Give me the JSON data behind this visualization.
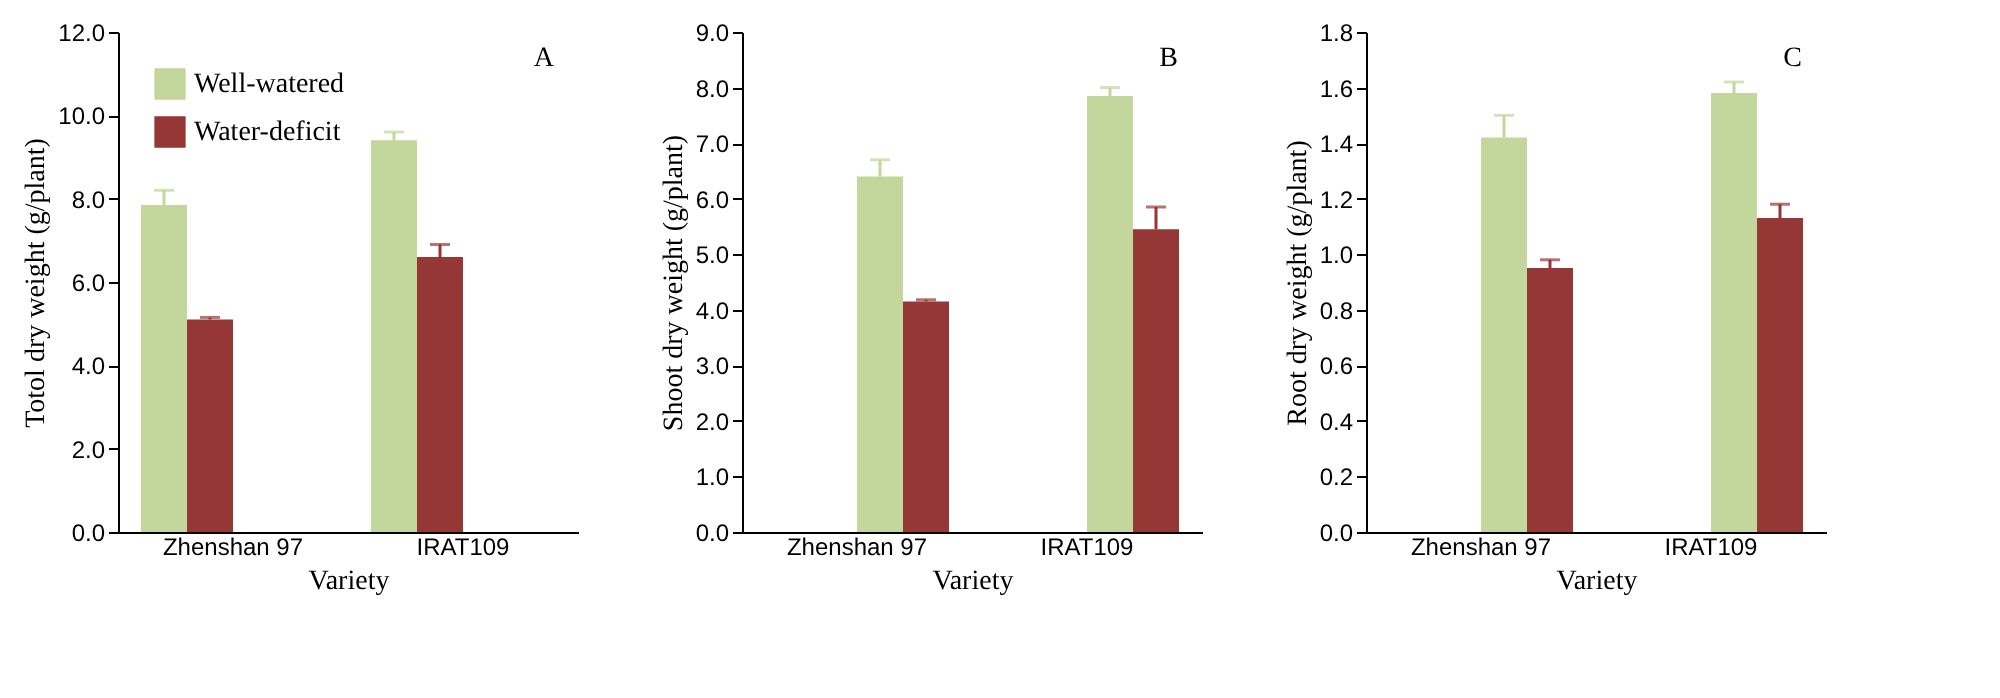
{
  "chart_data": [
    {
      "type": "bar",
      "ylabel": "Totol dry weight (g/plant)",
      "xlabel": "Variety",
      "categories": [
        "Zhenshan 97",
        "IRAT109"
      ],
      "annotations": [
        "A"
      ],
      "legend": "top left",
      "grid": false,
      "ylim": [
        0,
        12
      ],
      "yticks": [
        {
          "value": 0,
          "label": "0.0"
        },
        {
          "value": 2,
          "label": "2.0"
        },
        {
          "value": 4,
          "label": "4.0"
        },
        {
          "value": 6,
          "label": "6.0"
        },
        {
          "value": 8,
          "label": "8.0"
        },
        {
          "value": 10,
          "label": "10.0"
        },
        {
          "value": 12,
          "label": "12.0"
        }
      ],
      "series": [
        {
          "name": "Well-watered",
          "color": "#c3d69b",
          "values": [
            7.85,
            9.4
          ],
          "errors": [
            [
              7.85,
              8.2
            ],
            [
              9.4,
              9.6
            ]
          ]
        },
        {
          "name": "Water-deficit",
          "color": "#953735",
          "values": [
            5.1,
            6.6
          ],
          "errors": [
            [
              5.1,
              5.15
            ],
            [
              6.6,
              6.9
            ]
          ]
        }
      ]
    },
    {
      "type": "bar",
      "ylabel": "Shoot dry weight (g/plant)",
      "xlabel": "Variety",
      "categories": [
        "Zhenshan 97",
        "IRAT109"
      ],
      "annotations": [
        "B"
      ],
      "grid": false,
      "ylim": [
        0,
        9
      ],
      "yticks": [
        {
          "value": 0,
          "label": "0.0"
        },
        {
          "value": 1,
          "label": "1.0"
        },
        {
          "value": 2,
          "label": "2.0"
        },
        {
          "value": 3,
          "label": "3.0"
        },
        {
          "value": 4,
          "label": "4.0"
        },
        {
          "value": 5,
          "label": "5.0"
        },
        {
          "value": 6,
          "label": "6.0"
        },
        {
          "value": 7,
          "label": "7.0"
        },
        {
          "value": 8,
          "label": "8.0"
        },
        {
          "value": 9,
          "label": "9.0"
        }
      ],
      "series": [
        {
          "color": "#c3d69b",
          "values": [
            6.4,
            7.85
          ],
          "errors": [
            [
              6.4,
              6.7
            ],
            [
              7.85,
              8.0
            ]
          ]
        },
        {
          "color": "#953735",
          "values": [
            4.15,
            5.45
          ],
          "errors": [
            [
              4.15,
              4.18
            ],
            [
              5.45,
              5.85
            ]
          ]
        }
      ]
    },
    {
      "type": "bar",
      "ylabel": "Root dry weight (g/plant)",
      "xlabel": "Variety",
      "categories": [
        "Zhenshan 97",
        "IRAT109"
      ],
      "annotations": [
        "C"
      ],
      "grid": false,
      "ylim": [
        0,
        1.8
      ],
      "yticks": [
        {
          "value": 0,
          "label": "0.0"
        },
        {
          "value": 0.2,
          "label": "0.2"
        },
        {
          "value": 0.4,
          "label": "0.4"
        },
        {
          "value": 0.6,
          "label": "0.6"
        },
        {
          "value": 0.8,
          "label": "0.8"
        },
        {
          "value": 1.0,
          "label": "1.0"
        },
        {
          "value": 1.2,
          "label": "1.2"
        },
        {
          "value": 1.4,
          "label": "1.4"
        },
        {
          "value": 1.6,
          "label": "1.6"
        },
        {
          "value": 1.8,
          "label": "1.8"
        }
      ],
      "series": [
        {
          "color": "#c3d69b",
          "values": [
            1.42,
            1.58
          ],
          "errors": [
            [
              1.42,
              1.5
            ],
            [
              1.58,
              1.62
            ]
          ]
        },
        {
          "color": "#953735",
          "values": [
            0.95,
            1.13
          ],
          "errors": [
            [
              0.95,
              0.98
            ],
            [
              1.13,
              1.18
            ]
          ]
        }
      ]
    }
  ]
}
